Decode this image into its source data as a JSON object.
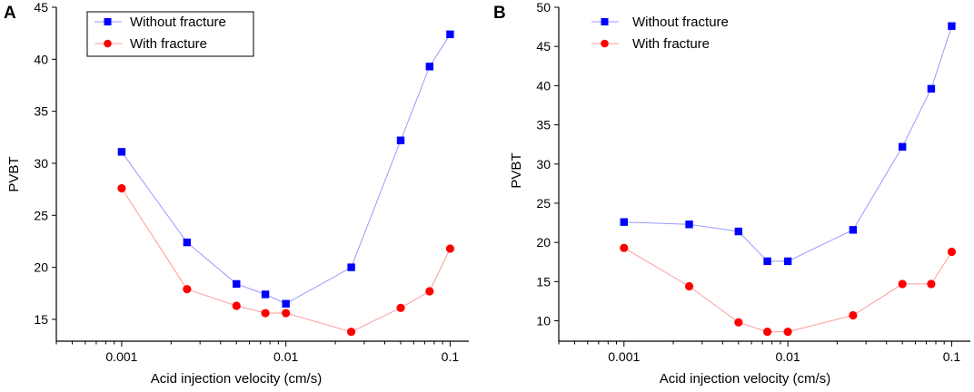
{
  "chart_data": [
    {
      "panel": "A",
      "type": "line",
      "x_scale": "log",
      "xlabel": "Acid injection velocity (cm/s)",
      "ylabel": "PVBT",
      "xlim": [
        0.0004,
        0.13
      ],
      "ylim": [
        12.9,
        45
      ],
      "yticks": [
        15,
        20,
        25,
        30,
        35,
        40,
        45
      ],
      "xticks": [
        0.001,
        0.01,
        0.1
      ],
      "xtick_labels": [
        "0.001",
        "0.01",
        "0.1"
      ],
      "legend_position": "top-left",
      "series": [
        {
          "name": "Without fracture",
          "marker": "square",
          "color": "#0000ff",
          "line_color": "#9a9aff",
          "x": [
            0.001,
            0.0025,
            0.005,
            0.0075,
            0.01,
            0.025,
            0.05,
            0.075,
            0.1
          ],
          "values": [
            31.1,
            22.4,
            18.4,
            17.4,
            16.5,
            20.0,
            32.2,
            39.3,
            42.4
          ]
        },
        {
          "name": "With fracture",
          "marker": "circle",
          "color": "#ff0000",
          "line_color": "#ff9a9a",
          "x": [
            0.001,
            0.0025,
            0.005,
            0.0075,
            0.01,
            0.025,
            0.05,
            0.075,
            0.1
          ],
          "values": [
            27.6,
            17.9,
            16.3,
            15.6,
            15.6,
            13.8,
            16.1,
            17.7,
            21.8
          ]
        }
      ]
    },
    {
      "panel": "B",
      "type": "line",
      "x_scale": "log",
      "xlabel": "Acid injection velocity (cm/s)",
      "ylabel": "PVBT",
      "xlim": [
        0.0004,
        0.13
      ],
      "ylim": [
        7.4,
        50
      ],
      "yticks": [
        10,
        15,
        20,
        25,
        30,
        35,
        40,
        45,
        50
      ],
      "xticks": [
        0.001,
        0.01,
        0.1
      ],
      "xtick_labels": [
        "0.001",
        "0.01",
        "0.1"
      ],
      "legend_position": "top-left",
      "series": [
        {
          "name": "Without fracture",
          "marker": "square",
          "color": "#0000ff",
          "line_color": "#9a9aff",
          "x": [
            0.001,
            0.0025,
            0.005,
            0.0075,
            0.01,
            0.025,
            0.05,
            0.075,
            0.1
          ],
          "values": [
            22.6,
            22.3,
            21.4,
            17.6,
            17.6,
            21.6,
            32.2,
            39.6,
            47.6
          ]
        },
        {
          "name": "With fracture",
          "marker": "circle",
          "color": "#ff0000",
          "line_color": "#ff9a9a",
          "x": [
            0.001,
            0.0025,
            0.005,
            0.0075,
            0.01,
            0.025,
            0.05,
            0.075,
            0.1
          ],
          "values": [
            19.3,
            14.4,
            9.8,
            8.6,
            8.6,
            10.7,
            14.7,
            14.7,
            18.8
          ]
        }
      ]
    }
  ]
}
